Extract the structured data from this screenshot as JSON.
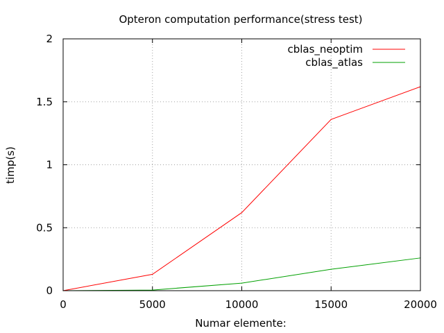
{
  "chart_data": {
    "type": "line",
    "title": "Opteron computation performance(stress test)",
    "xlabel": "Numar elemente:",
    "ylabel": "timp(s)",
    "xlim": [
      0,
      20000
    ],
    "ylim": [
      0,
      2
    ],
    "xticks": [
      0,
      5000,
      10000,
      15000,
      20000
    ],
    "xtick_labels": [
      "0",
      "5000",
      "10000",
      "15000",
      "20000"
    ],
    "yticks": [
      0,
      0.5,
      1,
      1.5,
      2
    ],
    "ytick_labels": [
      "0",
      "0.5",
      "1",
      "1.5",
      "2"
    ],
    "grid": true,
    "legend_position": "top-right",
    "series": [
      {
        "name": "cblas_neoptim",
        "color": "#ff0000",
        "x": [
          0,
          5000,
          10000,
          15000,
          20000
        ],
        "y": [
          0,
          0.13,
          0.62,
          1.36,
          1.62
        ]
      },
      {
        "name": "cblas_atlas",
        "color": "#00a000",
        "x": [
          0,
          5000,
          10000,
          15000,
          20000
        ],
        "y": [
          0,
          0.005,
          0.06,
          0.17,
          0.26
        ]
      }
    ]
  }
}
